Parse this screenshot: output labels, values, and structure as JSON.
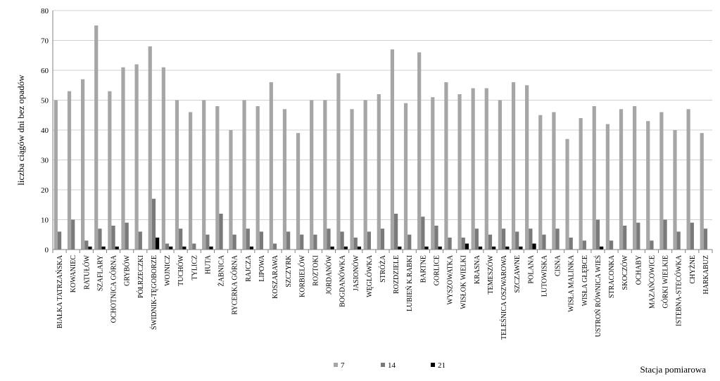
{
  "chart_data": {
    "type": "bar",
    "ylabel": "liczba ciągów dni bez opadów",
    "xlabel": "Stacja pomiarowa",
    "ylim": [
      0,
      80
    ],
    "yticks": [
      0,
      10,
      20,
      30,
      40,
      50,
      60,
      70,
      80
    ],
    "grid": "horizontal",
    "legend_position": "bottom",
    "categories": [
      "BIAŁKA TATRZAŃSKA",
      "KOWANIEC",
      "RATUŁÓW",
      "SZAFLARY",
      "OCHOTNICA GÓRNA",
      "GRYBÓW",
      "PÓŁRZECZKI",
      "ŚWIDNIK-TĘGOBORZE",
      "WOJNICZ",
      "TUCHÓW",
      "TYLICZ",
      "HUTA",
      "ŻABNICA",
      "RYCERKA GÓRNA",
      "RAJCZA",
      "LIPOWA",
      "KOSZARAWA",
      "SZCZYRK",
      "KORBIELÓW",
      "ROZTOKI",
      "JORDANÓW",
      "BOGDANÓWKA",
      "JASIONÓW",
      "WĘGLÓWKA",
      "STRÓŻA",
      "ROZDZIELE",
      "LUBIEŃ K.RABKI",
      "BARTNE",
      "GORLICE",
      "WYSZOWATKA",
      "WISŁOK WIELKI",
      "KRASNA",
      "TEMESZÓW",
      "TELEŚNICA OSZWAROWA",
      "SZCZAWNE",
      "POLANA",
      "LUTOWISKA",
      "CISNA",
      "WISŁA MALINKA",
      "WISŁA GŁĘBCE",
      "USTROŃ RÓWNICA WIEŚ",
      "STRACONKA",
      "SKOCZÓW",
      "OCHABY",
      "MAZAŃCOWICE",
      "GÓRKI WIELKIE",
      "ISTEBNA-STECÓWKA",
      "CHYŻNE",
      "HARKABUZ"
    ],
    "series": [
      {
        "name": "7",
        "color": "#a6a6a6",
        "values": [
          50,
          53,
          57,
          75,
          53,
          61,
          62,
          68,
          61,
          50,
          46,
          50,
          48,
          40,
          50,
          48,
          56,
          47,
          39,
          50,
          50,
          59,
          47,
          50,
          52,
          67,
          49,
          66,
          51,
          56,
          52,
          54,
          54,
          50,
          56,
          55,
          45,
          46,
          37,
          44,
          48,
          42,
          47,
          48,
          43,
          46,
          40,
          47,
          39
        ]
      },
      {
        "name": "14",
        "color": "#7a7a7a",
        "values": [
          6,
          10,
          3,
          7,
          8,
          9,
          6,
          17,
          2,
          7,
          2,
          5,
          12,
          5,
          7,
          6,
          2,
          6,
          5,
          5,
          7,
          6,
          4,
          6,
          7,
          12,
          5,
          11,
          8,
          4,
          4,
          7,
          5,
          7,
          6,
          7,
          5,
          7,
          4,
          3,
          10,
          3,
          8,
          9,
          3,
          10,
          6,
          9,
          7
        ]
      },
      {
        "name": "21",
        "color": "#000000",
        "values": [
          0,
          0,
          1,
          1,
          1,
          0,
          0,
          4,
          1,
          1,
          0,
          1,
          0,
          0,
          1,
          0,
          0,
          0,
          0,
          0,
          1,
          1,
          1,
          0,
          0,
          1,
          0,
          1,
          1,
          0,
          2,
          1,
          1,
          1,
          1,
          2,
          0,
          0,
          0,
          0,
          1,
          0,
          0,
          0,
          0,
          0,
          0,
          0,
          0
        ]
      }
    ]
  }
}
